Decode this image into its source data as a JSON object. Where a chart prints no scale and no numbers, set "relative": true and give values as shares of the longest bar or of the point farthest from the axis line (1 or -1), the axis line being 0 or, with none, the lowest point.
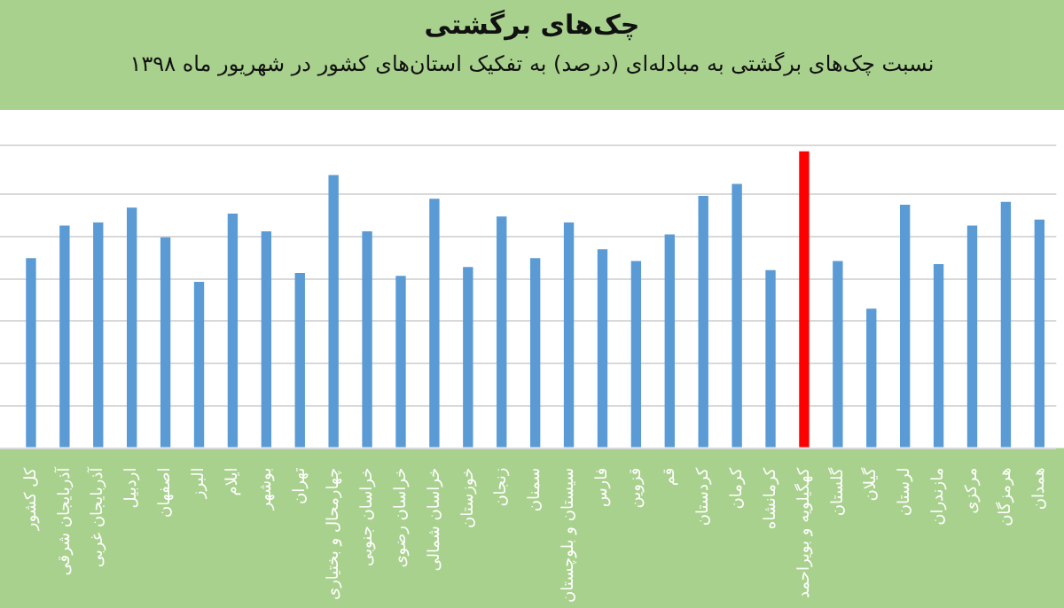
{
  "chart_data": {
    "type": "bar",
    "title": "چک‌های برگشتی",
    "subtitle": "نسبت چک‌های برگشتی به مبادله‌ای (درصد) به تفکیک استان‌های کشور در شهریور ماه ۱۳۹۸",
    "categories": [
      "کل کشور",
      "آذربایجان شرقی",
      "آذربایجان غربی",
      "اردبیل",
      "اصفهان",
      "البرز",
      "ایلام",
      "بوشهر",
      "تهران",
      "چهارمحال و بختیاری",
      "خراسان جنوبی",
      "خراسان رضوی",
      "خراسان شمالی",
      "خوزستان",
      "زنجان",
      "سمنان",
      "سیستان و بلوچستان",
      "فارس",
      "قزوین",
      "قم",
      "کردستان",
      "کرمان",
      "کرمانشاه",
      "کهگیلویه و بویراحمد",
      "گلستان",
      "گیلان",
      "لرستان",
      "مازندران",
      "مرکزی",
      "هرمزگان",
      "همدان"
    ],
    "values": [
      0.64,
      0.75,
      0.76,
      0.81,
      0.71,
      0.56,
      0.79,
      0.73,
      0.59,
      0.92,
      0.73,
      0.58,
      0.84,
      0.61,
      0.78,
      0.64,
      0.76,
      0.67,
      0.63,
      0.72,
      0.85,
      0.89,
      0.6,
      1,
      0.63,
      0.47,
      0.82,
      0.62,
      0.75,
      0.83,
      0.77
    ],
    "colors": [
      "#5b9bd5",
      "#5b9bd5",
      "#5b9bd5",
      "#5b9bd5",
      "#5b9bd5",
      "#5b9bd5",
      "#5b9bd5",
      "#5b9bd5",
      "#5b9bd5",
      "#5b9bd5",
      "#5b9bd5",
      "#5b9bd5",
      "#5b9bd5",
      "#5b9bd5",
      "#5b9bd5",
      "#5b9bd5",
      "#5b9bd5",
      "#5b9bd5",
      "#5b9bd5",
      "#5b9bd5",
      "#5b9bd5",
      "#5b9bd5",
      "#5b9bd5",
      "#ff0000",
      "#5b9bd5",
      "#5b9bd5",
      "#5b9bd5",
      "#5b9bd5",
      "#5b9bd5",
      "#5b9bd5",
      "#5b9bd5"
    ],
    "relative": true,
    "grid": "y",
    "legend": false
  }
}
